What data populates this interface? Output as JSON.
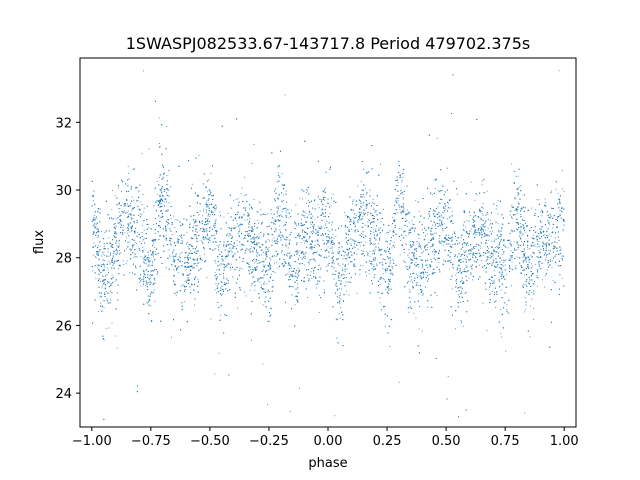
{
  "chart_data": {
    "type": "scatter",
    "title": "1SWASPJ082533.67-143717.8 Period 479702.375s",
    "xlabel": "phase",
    "ylabel": "flux",
    "xlim": [
      -1.05,
      1.05
    ],
    "ylim": [
      23.0,
      33.9
    ],
    "xticks": [
      -1.0,
      -0.75,
      -0.5,
      -0.25,
      0.0,
      0.25,
      0.5,
      0.75,
      1.0
    ],
    "xtick_labels": [
      "−1.00",
      "−0.75",
      "−0.50",
      "−0.25",
      "0.00",
      "0.25",
      "0.50",
      "0.75",
      "1.00"
    ],
    "yticks": [
      24,
      26,
      28,
      30,
      32
    ],
    "ytick_labels": [
      "24",
      "26",
      "28",
      "30",
      "32"
    ],
    "grid": false,
    "marker_color": "#1f77b4",
    "series": [
      {
        "name": "",
        "profile_x": [
          -1.0,
          -0.95,
          -0.9,
          -0.85,
          -0.8,
          -0.75,
          -0.7,
          -0.65,
          -0.6,
          -0.55,
          -0.5,
          -0.45,
          -0.4,
          -0.35,
          -0.3,
          -0.25,
          -0.2,
          -0.15,
          -0.1,
          -0.05,
          0.0,
          0.05,
          0.1,
          0.15,
          0.2,
          0.25,
          0.3,
          0.35,
          0.4,
          0.45,
          0.5,
          0.55,
          0.6,
          0.65,
          0.7,
          0.75,
          0.8,
          0.85,
          0.9,
          0.95,
          1.0
        ],
        "profile_y": [
          29.0,
          27.3,
          28.4,
          29.2,
          28.5,
          27.6,
          29.8,
          28.1,
          27.8,
          28.6,
          29.1,
          27.4,
          28.3,
          28.8,
          28.0,
          27.6,
          29.3,
          27.5,
          28.7,
          28.4,
          29.0,
          27.3,
          28.4,
          29.2,
          28.5,
          27.6,
          29.8,
          28.1,
          27.8,
          28.6,
          29.1,
          27.4,
          28.3,
          28.8,
          28.0,
          27.6,
          29.3,
          27.5,
          28.7,
          28.4,
          29.0
        ],
        "scatter_sigma": 0.75,
        "n_points": 9000
      }
    ]
  }
}
